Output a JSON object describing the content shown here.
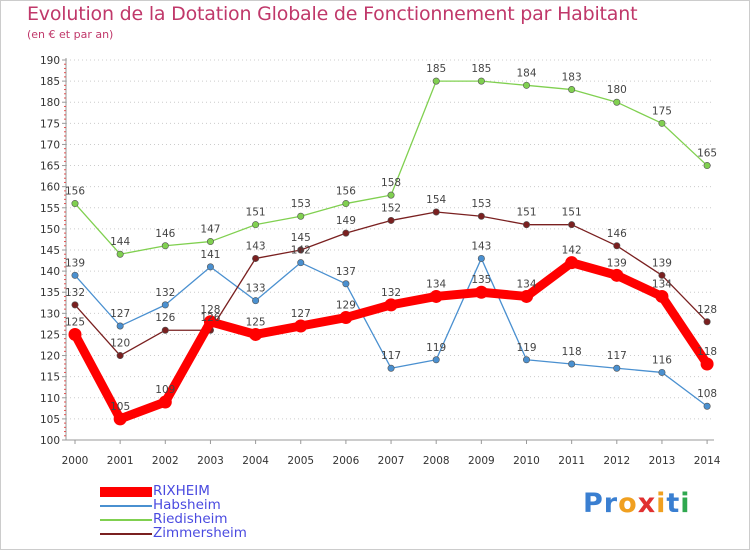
{
  "header": {
    "title": "Evolution de la Dotation Globale de Fonctionnement par Habitant",
    "subtitle": "(en € et par an)"
  },
  "logo": {
    "text": "Proxiti",
    "letters": [
      "P",
      "r",
      "o",
      "x",
      "i",
      "t",
      "i"
    ],
    "colors": [
      "#3a7fd1",
      "#3a7fd1",
      "#f0a020",
      "#e03030",
      "#f0a020",
      "#3a7fd1",
      "#2fa84f"
    ]
  },
  "chart_data": {
    "type": "line",
    "title": "Evolution de la Dotation Globale de Fonctionnement par Habitant",
    "subtitle": "(en € et par an)",
    "xlabel": "",
    "ylabel": "",
    "x": [
      "2000",
      "2001",
      "2002",
      "2003",
      "2004",
      "2005",
      "2006",
      "2007",
      "2008",
      "2009",
      "2010",
      "2011",
      "2012",
      "2013",
      "2014"
    ],
    "ylim": [
      100,
      190
    ],
    "yticks": [
      100,
      105,
      110,
      115,
      120,
      125,
      130,
      135,
      140,
      145,
      150,
      155,
      160,
      165,
      170,
      175,
      180,
      185,
      190
    ],
    "grid": true,
    "legend_position": "bottom-left",
    "series": [
      {
        "name": "RIXHEIM",
        "color": "#ff0000",
        "emphasis": true,
        "values": [
          125,
          105,
          109,
          128,
          125,
          127,
          129,
          132,
          134,
          135,
          134,
          142,
          139,
          134,
          118
        ]
      },
      {
        "name": "Habsheim",
        "color": "#4a90d0",
        "values": [
          139,
          127,
          132,
          141,
          133,
          142,
          137,
          117,
          119,
          143,
          119,
          118,
          117,
          116,
          108
        ]
      },
      {
        "name": "Riedisheim",
        "color": "#80d050",
        "values": [
          156,
          144,
          146,
          147,
          151,
          153,
          156,
          158,
          185,
          185,
          184,
          183,
          180,
          175,
          165
        ]
      },
      {
        "name": "Zimmersheim",
        "color": "#7a2020",
        "values": [
          132,
          120,
          126,
          126,
          143,
          145,
          149,
          152,
          154,
          153,
          151,
          151,
          146,
          139,
          128
        ]
      }
    ]
  }
}
